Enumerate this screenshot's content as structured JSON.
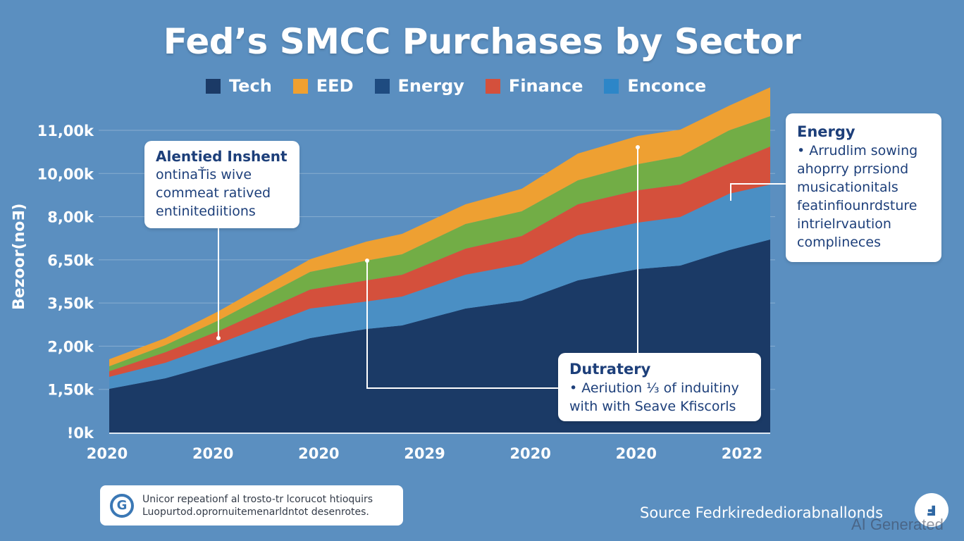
{
  "title": "Fed’s SMCC Purchases by Sector",
  "legend": [
    {
      "label": "Tech",
      "color": "#1b3a66"
    },
    {
      "label": "EED",
      "color": "#f0a030"
    },
    {
      "label": "Energy",
      "color": "#1e4b80"
    },
    {
      "label": "Finance",
      "color": "#d4503c"
    },
    {
      "label": "Enconce",
      "color": "#2d86c8"
    }
  ],
  "callouts": {
    "left": {
      "lines": [
        "Alentied Inshent",
        "ontinaŤis wive",
        "commeat ratived",
        "entinitediitions"
      ]
    },
    "right": {
      "title": "Energy",
      "lines": [
        "• Arrudlim sowing",
        "ahoprry prrsiond",
        "musicationitals",
        "featinfiounrdsture",
        "intrielrvaution",
        "complineces"
      ]
    },
    "bottom": {
      "title": "Dutratery",
      "lines": [
        "• Aeriution ⅓ of induitiny",
        "with with Seave Kfiscorls"
      ]
    }
  },
  "footer_note": {
    "icon": "g-circle-logo-icon",
    "lines": [
      "Unicor repeationf al trosto-tr lcorucot htioquirs",
      "Luopurtod.oprornuitemenarldntot desenrotes."
    ]
  },
  "source": "Source Fedrkiredediorabnallonds",
  "watermark": "AI Generated",
  "badge_icon": "ai-badge-icon",
  "chart_data": {
    "type": "area",
    "stacked": true,
    "title": "Fed’s SMCC Purchases by Sector",
    "xlabel": "",
    "ylabel": "Bezoor(no∃)",
    "x_tick_labels": [
      "2020",
      "2020",
      "2020",
      "2029",
      "2020",
      "2020",
      "2022"
    ],
    "y_tick_labels": [
      "!0k",
      "1,50k",
      "2,00k",
      "3,50k",
      "6,50k",
      "8,00k",
      "10,00k",
      "11,00k"
    ],
    "ylim": [
      0,
      11000
    ],
    "grid": true,
    "legend_position": "top",
    "x": [
      0.0,
      0.085,
      0.165,
      0.304,
      0.389,
      0.443,
      0.539,
      0.624,
      0.709,
      0.8,
      0.864,
      0.938,
      1.0
    ],
    "series": [
      {
        "name": "Tech",
        "color": "#1b3a66",
        "values": [
          1590,
          1974,
          2513,
          3436,
          3769,
          3897,
          4513,
          4795,
          5538,
          5949,
          6077,
          6641,
          7026
        ]
      },
      {
        "name": "Enconce",
        "color": "#4a8fc4",
        "values": [
          436,
          564,
          718,
          1077,
          1000,
          1051,
          1231,
          1333,
          1641,
          1692,
          1769,
          2051,
          2000
        ]
      },
      {
        "name": "Finance",
        "color": "#d4503c",
        "values": [
          205,
          385,
          462,
          692,
          769,
          795,
          949,
          1026,
          1128,
          1179,
          1179,
          1103,
          1385
        ]
      },
      {
        "name": "Energy",
        "color": "#72ad46",
        "values": [
          180,
          256,
          385,
          641,
          718,
          744,
          897,
          897,
          872,
          949,
          1026,
          1205,
          1103
        ]
      },
      {
        "name": "EED",
        "color": "#eea032",
        "values": [
          256,
          256,
          333,
          462,
          692,
          744,
          718,
          821,
          974,
          1026,
          974,
          897,
          1051
        ]
      }
    ],
    "annotations": [
      {
        "callout": "left",
        "x": 0.165
      },
      {
        "callout": "bottom",
        "x": 0.389
      },
      {
        "callout": "bottom",
        "x": 0.8
      },
      {
        "callout": "right",
        "x": 0.938
      }
    ]
  }
}
